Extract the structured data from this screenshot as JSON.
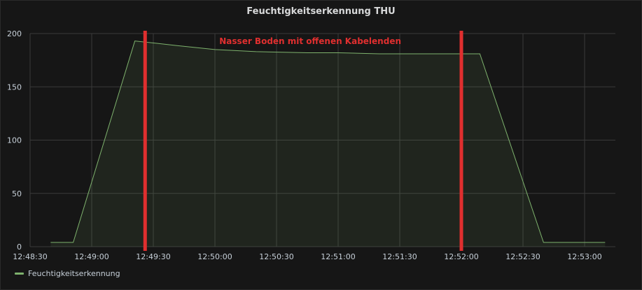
{
  "panel": {
    "title": "Feuchtigkeitserkennung THU"
  },
  "colors": {
    "series": "#7eb26d",
    "annotation": "#e02f2f"
  },
  "chart_data": {
    "type": "area",
    "title": "Feuchtigkeitserkennung THU",
    "xlabel": "",
    "ylabel": "",
    "x_ticks": [
      "12:48:30",
      "12:49:00",
      "12:49:30",
      "12:50:00",
      "12:50:30",
      "12:51:00",
      "12:51:30",
      "12:52:00",
      "12:52:30",
      "12:53:00"
    ],
    "y_ticks": [
      "0",
      "50",
      "100",
      "150",
      "200"
    ],
    "xlim": [
      "12:48:30",
      "12:53:15"
    ],
    "ylim": [
      0,
      200
    ],
    "grid": true,
    "legend_position": "bottom-left",
    "series": [
      {
        "name": "Feuchtigkeitserkennung",
        "x": [
          "12:48:40",
          "12:48:51",
          "12:49:21",
          "12:49:31",
          "12:49:40",
          "12:50:00",
          "12:50:20",
          "12:50:45",
          "12:51:00",
          "12:51:20",
          "12:51:40",
          "12:52:00",
          "12:52:09",
          "12:52:40",
          "12:53:10"
        ],
        "values": [
          4,
          4,
          193,
          191,
          189,
          185,
          183,
          182,
          182,
          181,
          181,
          181,
          181,
          4,
          4
        ]
      }
    ],
    "annotations": [
      {
        "text": "Nasser Boden mit offenen Kabelenden",
        "at": "12:49:26"
      },
      {
        "text": "",
        "at": "12:52:00"
      }
    ]
  },
  "legend": {
    "label": "Feuchtigkeitserkennung"
  }
}
